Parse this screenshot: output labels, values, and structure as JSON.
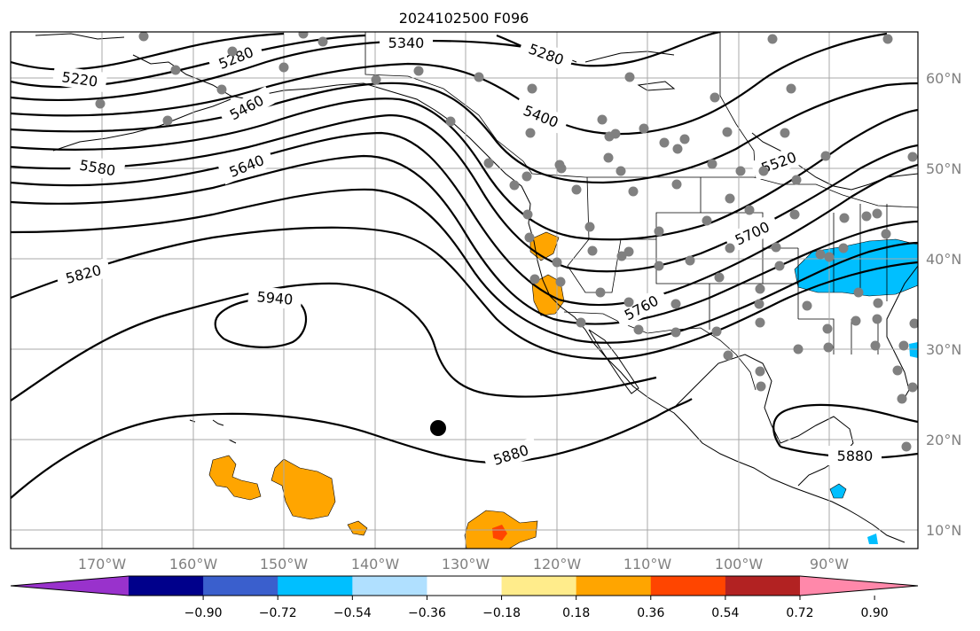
{
  "title": "2024102500 F096",
  "lat_labels": [
    "60°N",
    "50°N",
    "40°N",
    "30°N",
    "20°N",
    "10°N"
  ],
  "lon_labels": [
    "170°W",
    "160°W",
    "150°W",
    "140°W",
    "130°W",
    "120°W",
    "110°W",
    "100°W",
    "90°W"
  ],
  "contour_labels": {
    "c5220": "5220",
    "c5280a": "5280",
    "c5340": "5340",
    "c5280b": "5280",
    "c5400": "5400",
    "c5460": "5460",
    "c5520": "5520",
    "c5580": "5580",
    "c5640": "5640",
    "c5700": "5700",
    "c5760": "5760",
    "c5820": "5820",
    "c5880a": "5880",
    "c5880b": "5880",
    "c5940": "5940"
  },
  "colorbar": {
    "colors": [
      "#9932cc",
      "#00008b",
      "#3a5fcd",
      "#00bfff",
      "#b0e0ff",
      "#ffffff",
      "#ffec8b",
      "#ffa500",
      "#ff4500",
      "#b22222",
      "#ff88aa"
    ],
    "ticks": [
      "−0.90",
      "−0.72",
      "−0.54",
      "−0.36",
      "−0.18",
      "0.18",
      "0.36",
      "0.54",
      "0.72",
      "0.90"
    ]
  },
  "colors": {
    "orange": "#ffa500",
    "red": "#ff4500",
    "yellow": "#ffec8b",
    "blue": "#00bfff",
    "station": "#808080"
  }
}
